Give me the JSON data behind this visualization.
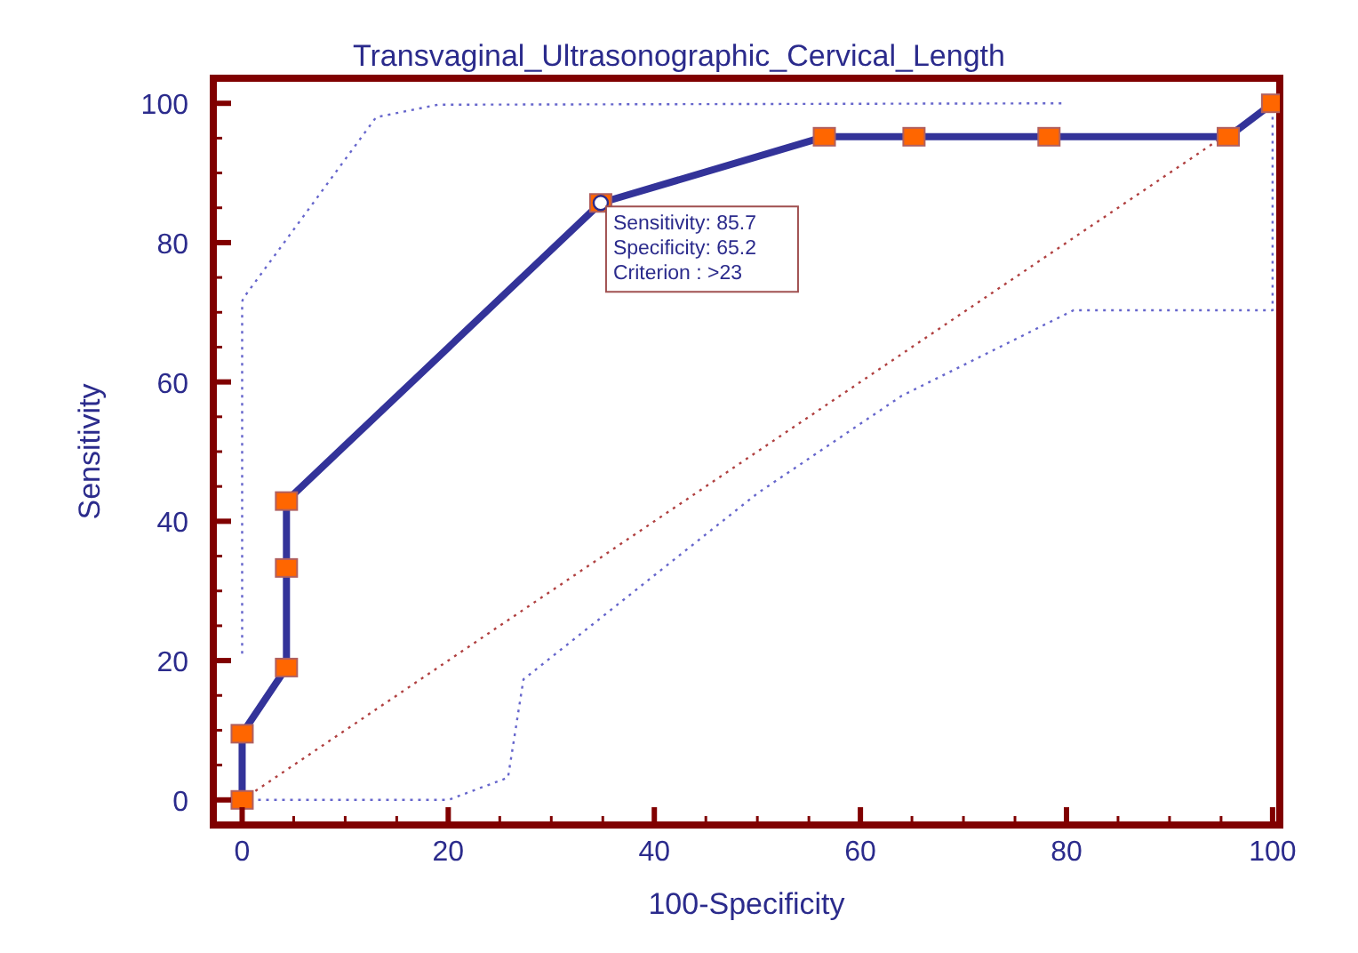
{
  "chart_data": {
    "type": "line",
    "title": "Transvaginal_Ultrasonographic_Cervical_Length",
    "xlabel": "100-Specificity",
    "ylabel": "Sensitivity",
    "xlim": [
      -2.8,
      100.7
    ],
    "ylim": [
      -3.6,
      103.6
    ],
    "xticks": [
      0,
      {
        "value": 5,
        "label": null
      },
      {
        "value": 10,
        "label": null
      },
      {
        "value": 15,
        "label": null
      },
      20,
      {
        "value": 25,
        "label": null
      },
      {
        "value": 30,
        "label": null
      },
      {
        "value": 35,
        "label": null
      },
      40,
      {
        "value": 45,
        "label": null
      },
      {
        "value": 50,
        "label": null
      },
      {
        "value": 55,
        "label": null
      },
      60,
      {
        "value": 65,
        "label": null
      },
      {
        "value": 70,
        "label": null
      },
      {
        "value": 75,
        "label": null
      },
      80,
      {
        "value": 85,
        "label": null
      },
      {
        "value": 90,
        "label": null
      },
      {
        "value": 95,
        "label": null
      },
      100
    ],
    "yticks": [
      0,
      {
        "value": 5,
        "label": null
      },
      {
        "value": 10,
        "label": null
      },
      {
        "value": 15,
        "label": null
      },
      20,
      {
        "value": 25,
        "label": null
      },
      {
        "value": 30,
        "label": null
      },
      {
        "value": 35,
        "label": null
      },
      40,
      {
        "value": 45,
        "label": null
      },
      {
        "value": 50,
        "label": null
      },
      {
        "value": 55,
        "label": null
      },
      60,
      {
        "value": 65,
        "label": null
      },
      {
        "value": 70,
        "label": null
      },
      {
        "value": 75,
        "label": null
      },
      80,
      {
        "value": 85,
        "label": null
      },
      {
        "value": 90,
        "label": null
      },
      {
        "value": 95,
        "label": null
      },
      100
    ],
    "series": [
      {
        "color": "#6666cc",
        "line_style": "dotted",
        "marker": "none",
        "x": [
          0,
          0,
          0.1,
          13,
          19,
          80
        ],
        "values": [
          21,
          71.5,
          72,
          98,
          99.8,
          100
        ]
      },
      {
        "color": "#6666cc",
        "line_style": "dotted",
        "marker": "none",
        "x": [
          0,
          20,
          25.8,
          27.3,
          50,
          64,
          80.7,
          100,
          100
        ],
        "values": [
          0,
          0,
          3.2,
          17.3,
          44,
          58,
          70.3,
          70.3,
          98.6
        ]
      },
      {
        "color": "#b04040",
        "line_style": "dotted",
        "marker": "none",
        "x": [
          0,
          100
        ],
        "values": [
          0,
          100
        ]
      },
      {
        "color": "#333399",
        "line_style": "solid",
        "marker": "square",
        "colors": [
          "#ff6600",
          "#ff6600",
          "#ff6600",
          "#ff6600",
          "#ff6600",
          "#ff6600",
          "#ff6600",
          "#ff6600",
          "#ff6600",
          "#ff6600",
          "#ff6600"
        ],
        "x": [
          0,
          0,
          4.3,
          4.3,
          4.3,
          34.8,
          56.5,
          65.2,
          78.3,
          95.7,
          100
        ],
        "values": [
          0,
          9.5,
          19,
          33.3,
          42.9,
          85.7,
          95.2,
          95.2,
          95.2,
          95.2,
          100
        ]
      }
    ],
    "annotations": [
      {
        "text": "Sensitivity: 85.7",
        "x": 34.8,
        "y": 85.7
      },
      "Specificity: 65.2",
      "Criterion : >23"
    ]
  }
}
